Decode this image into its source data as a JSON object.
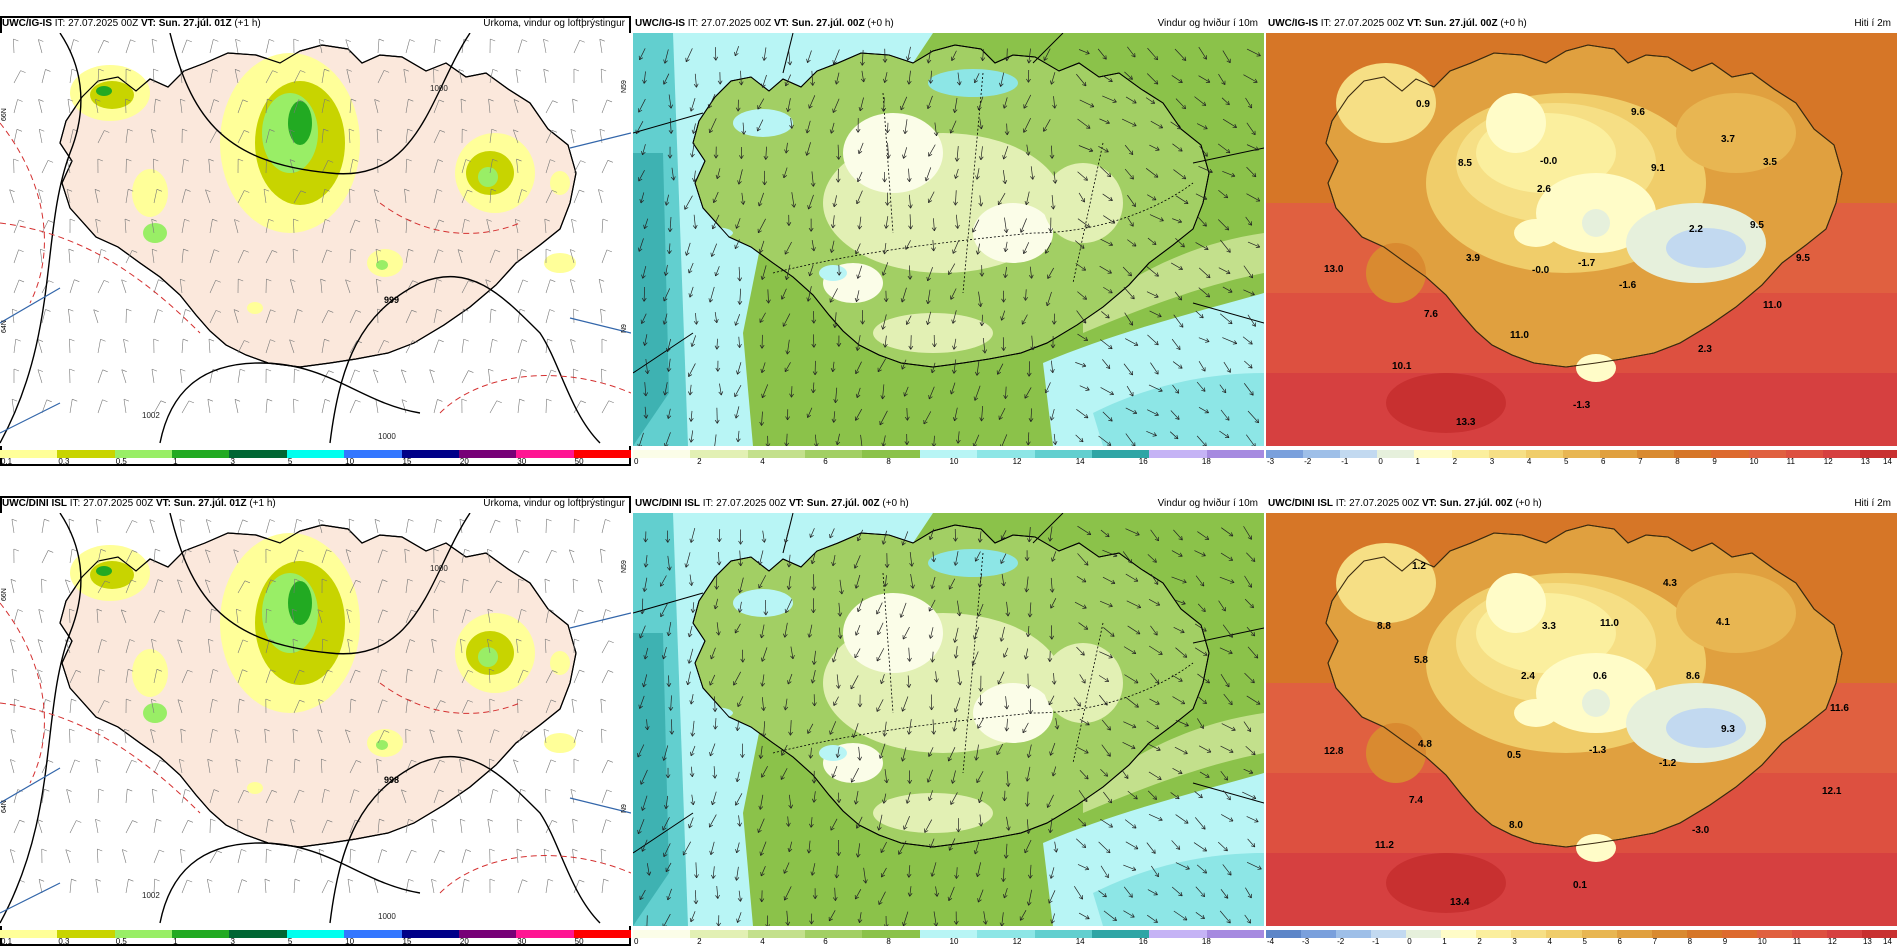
{
  "colors": {
    "precip": [
      "#ffff99",
      "#c8d400",
      "#99ee66",
      "#22aa22",
      "#006633",
      "#00ffee",
      "#3377ff",
      "#000088",
      "#770077",
      "#ff1493",
      "#ff0000"
    ],
    "wind": [
      "#fbfde8",
      "#e2f0b4",
      "#c3e08c",
      "#a2cf64",
      "#8bc24a",
      "#b8f5f5",
      "#8de6e6",
      "#62cfcf",
      "#2fa5a5",
      "#c5b3f5",
      "#a68ae0"
    ],
    "temp": [
      "#7aa0dc",
      "#9ebfe8",
      "#c2d9f0",
      "#e6f0dc",
      "#fffcc8",
      "#fbef9e",
      "#f6df85",
      "#f0cd6a",
      "#e8b652",
      "#e0a03f",
      "#d98a30",
      "#d67627",
      "#dd6a2e",
      "#e06040",
      "#dd5040",
      "#d64040",
      "#c83030"
    ],
    "temp2": [
      "#5d86c8",
      "#7aa0dc",
      "#9ebfe8",
      "#c2d9f0",
      "#e6f0dc",
      "#fffcc8",
      "#fbef9e",
      "#f6df85",
      "#f0cd6a",
      "#e8b652",
      "#e0a03f",
      "#d98a30",
      "#d67627",
      "#dd6a2e",
      "#e06040",
      "#dd5040",
      "#d64040",
      "#c83030"
    ]
  },
  "scales": {
    "precip_ticks": [
      "0.1",
      "0.3",
      "0.5",
      "1",
      "3",
      "5",
      "10",
      "15",
      "20",
      "30",
      "50"
    ],
    "wind_ticks": [
      "0",
      "2",
      "4",
      "6",
      "8",
      "10",
      "12",
      "14",
      "16",
      "18"
    ],
    "temp_ticks_a": [
      "-3",
      "-2",
      "-1",
      "0",
      "1",
      "2",
      "3",
      "4",
      "5",
      "6",
      "7",
      "8",
      "9",
      "10",
      "11",
      "12",
      "13",
      "14"
    ],
    "temp_ticks_b": [
      "-4",
      "-3",
      "-2",
      "-1",
      "0",
      "1",
      "2",
      "3",
      "4",
      "5",
      "6",
      "7",
      "8",
      "9",
      "10",
      "11",
      "12",
      "13",
      "14"
    ]
  },
  "panels": [
    {
      "model": "UWC/IG-IS",
      "it_prefix": "IT:",
      "it_value": "27.07.2025 00Z",
      "vt_prefix": "VT:",
      "vt_value": "Sun. 27.júl. 01Z",
      "lead": "(+1 h)",
      "title": "Úrkoma, vindur og loftþrýstingur",
      "pressure_labels": [
        "1000",
        "999",
        "1002",
        "1000"
      ],
      "lat_labels": [
        "66N",
        "64N",
        "N59",
        "N9"
      ]
    },
    {
      "model": "UWC/IG-IS",
      "it_prefix": "IT:",
      "it_value": "27.07.2025 00Z",
      "vt_prefix": "VT:",
      "vt_value": "Sun. 27.júl. 00Z",
      "lead": "(+0 h)",
      "title": "Vindur og hviður í 10m"
    },
    {
      "model": "UWC/IG-IS",
      "it_prefix": "IT:",
      "it_value": "27.07.2025 00Z",
      "vt_prefix": "VT:",
      "vt_value": "Sun. 27.júl. 00Z",
      "lead": "(+0 h)",
      "title": "Hiti í 2m",
      "temps": [
        "0.9",
        "9.6",
        "3.7",
        "8.5",
        "-0.0",
        "9.1",
        "3.5",
        "2.6",
        "2.2",
        "9.5",
        "13.0",
        "3.9",
        "-0.0",
        "-1.7",
        "-1.6",
        "9.5",
        "11.0",
        "7.6",
        "11.0",
        "2.3",
        "10.1",
        "-1.3",
        "13.3"
      ]
    },
    {
      "model": "UWC/DINI ISL",
      "it_prefix": "IT:",
      "it_value": "27.07.2025 00Z",
      "vt_prefix": "VT:",
      "vt_value": "Sun. 27.júl. 01Z",
      "lead": "(+1 h)",
      "title": "Úrkoma, vindur og loftþrýstingur",
      "pressure_labels": [
        "1000",
        "998",
        "1002",
        "1000"
      ],
      "lat_labels": [
        "66N",
        "64N",
        "N59",
        "N9"
      ]
    },
    {
      "model": "UWC/DINI ISL",
      "it_prefix": "IT:",
      "it_value": "27.07.2025 00Z",
      "vt_prefix": "VT:",
      "vt_value": "Sun. 27.júl. 00Z",
      "lead": "(+0 h)",
      "title": "Vindur og hviður í 10m"
    },
    {
      "model": "UWC/DINI ISL",
      "it_prefix": "IT:",
      "it_value": "27.07.2025 00Z",
      "vt_prefix": "VT:",
      "vt_value": "Sun. 27.júl. 00Z",
      "lead": "(+0 h)",
      "title": "Hiti í 2m",
      "temps": [
        "1.2",
        "4.3",
        "8.8",
        "3.3",
        "11.0",
        "4.1",
        "5.8",
        "2.4",
        "0.6",
        "8.6",
        "11.6",
        "9.3",
        "12.8",
        "4.8",
        "0.5",
        "-1.3",
        "-1.2",
        "12.1",
        "7.4",
        "8.0",
        "-3.0",
        "11.2",
        "0.1",
        "13.4"
      ]
    }
  ]
}
